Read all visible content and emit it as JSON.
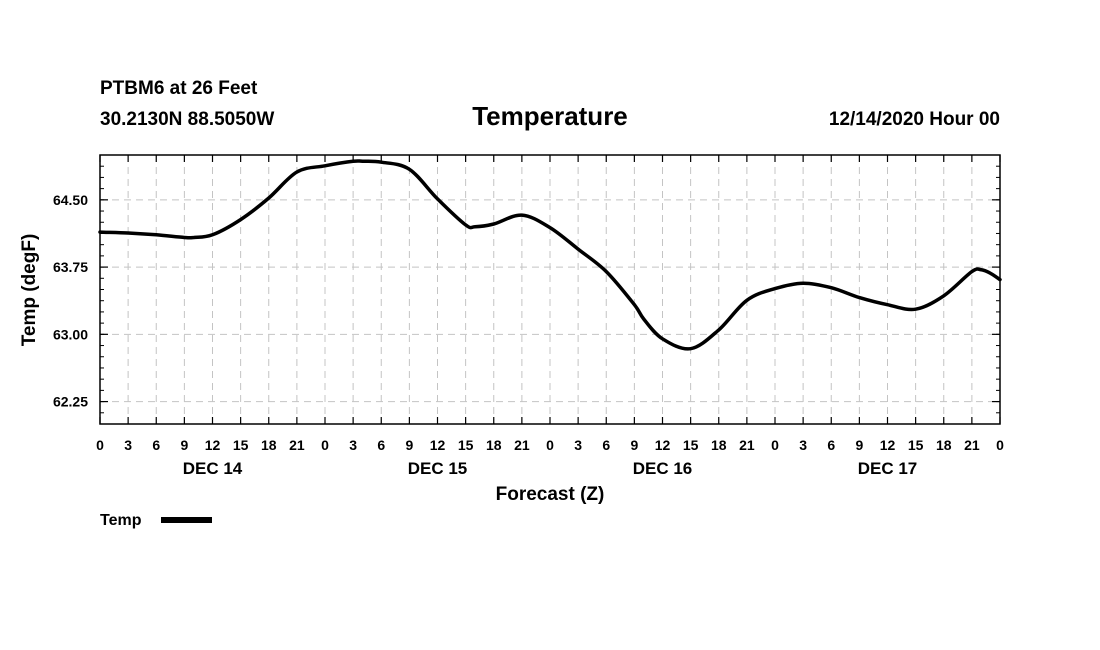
{
  "header": {
    "station": "PTBM6 at 26 Feet",
    "location": "30.2130N 88.5050W",
    "run": "12/14/2020 Hour 00"
  },
  "chart_data": {
    "type": "line",
    "title": "Temperature",
    "xlabel": "Forecast (Z)",
    "ylabel": "Temp (degF)",
    "x_unit": "hours from 12/14/2020 00Z",
    "xlim": [
      0,
      96
    ],
    "ylim": [
      62.0,
      65.0
    ],
    "x_ticks": [
      0,
      3,
      6,
      9,
      12,
      15,
      18,
      21,
      24,
      27,
      30,
      33,
      36,
      39,
      42,
      45,
      48,
      51,
      54,
      57,
      60,
      63,
      66,
      69,
      72,
      75,
      78,
      81,
      84,
      87,
      90,
      93,
      96
    ],
    "x_tick_labels": [
      "0",
      "3",
      "6",
      "9",
      "12",
      "15",
      "18",
      "21",
      "0",
      "3",
      "6",
      "9",
      "12",
      "15",
      "18",
      "21",
      "0",
      "3",
      "6",
      "9",
      "12",
      "15",
      "18",
      "21",
      "0",
      "3",
      "6",
      "9",
      "12",
      "15",
      "18",
      "21",
      "0"
    ],
    "y_ticks": [
      62.25,
      63.0,
      63.75,
      64.5
    ],
    "y_tick_labels": [
      "62.25",
      "63.00",
      "63.75",
      "64.50"
    ],
    "days": [
      {
        "label": "DEC 14",
        "center_hour": 12
      },
      {
        "label": "DEC 15",
        "center_hour": 36
      },
      {
        "label": "DEC 16",
        "center_hour": 60
      },
      {
        "label": "DEC 17",
        "center_hour": 84
      }
    ],
    "grid": true,
    "legend": "bottom-left",
    "series": [
      {
        "name": "Temp",
        "color": "#000000",
        "x": [
          0,
          3,
          6,
          9,
          10,
          12,
          15,
          18,
          21,
          24,
          27,
          28,
          30,
          33,
          36,
          39,
          40,
          42,
          45,
          48,
          51,
          54,
          57,
          58,
          60,
          63,
          66,
          69,
          72,
          75,
          78,
          81,
          84,
          87,
          90,
          93,
          94,
          95,
          96
        ],
        "values": [
          64.14,
          64.13,
          64.11,
          64.08,
          64.08,
          64.11,
          64.28,
          64.52,
          64.81,
          64.88,
          64.93,
          64.93,
          64.92,
          64.84,
          64.51,
          64.22,
          64.2,
          64.23,
          64.33,
          64.19,
          63.95,
          63.7,
          63.33,
          63.17,
          62.95,
          62.84,
          63.05,
          63.38,
          63.51,
          63.57,
          63.52,
          63.41,
          63.33,
          63.28,
          63.43,
          63.7,
          63.72,
          63.68,
          63.61
        ]
      }
    ]
  }
}
